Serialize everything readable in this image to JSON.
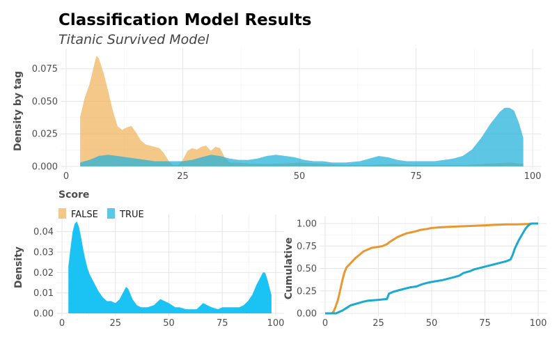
{
  "title": "Classification Model Results",
  "subtitle": "Titanic Survived Model",
  "chart_data": [
    {
      "type": "area",
      "panel": "density-by-tag",
      "xlabel": "Score",
      "ylabel": "Density by tag",
      "xlim": [
        0,
        100
      ],
      "ylim": [
        0,
        0.085
      ],
      "x_ticks": [
        "0",
        "25",
        "50",
        "75",
        "100"
      ],
      "y_ticks": [
        "0.000",
        "0.025",
        "0.050",
        "0.075"
      ],
      "legend": {
        "position": "bottom-left",
        "entries": [
          "FALSE",
          "TRUE"
        ]
      },
      "series": [
        {
          "name": "FALSE",
          "color": "#F0B35B",
          "x": [
            3,
            4,
            5,
            6,
            6.5,
            7,
            8,
            9,
            10,
            11,
            12,
            13,
            14,
            15,
            16,
            17,
            18,
            19,
            20,
            21,
            22,
            23,
            24,
            25,
            26,
            27,
            28,
            29,
            30,
            31,
            32,
            33,
            34,
            35,
            37,
            40,
            45,
            50,
            55,
            60,
            65,
            70,
            75,
            80,
            85,
            90,
            95,
            98
          ],
          "y": [
            0.038,
            0.053,
            0.063,
            0.078,
            0.085,
            0.083,
            0.072,
            0.058,
            0.043,
            0.031,
            0.028,
            0.03,
            0.031,
            0.026,
            0.02,
            0.017,
            0.016,
            0.015,
            0.014,
            0.01,
            0.004,
            0.001,
            0.001,
            0.005,
            0.012,
            0.014,
            0.013,
            0.015,
            0.016,
            0.012,
            0.015,
            0.014,
            0.007,
            0.003,
            0.003,
            0.002,
            0.002,
            0.003,
            0.002,
            0.001,
            0.001,
            0.002,
            0.001,
            0.001,
            0.001,
            0.002,
            0.003,
            0.002
          ]
        },
        {
          "name": "TRUE",
          "color": "#1FB0D9",
          "x": [
            3,
            5,
            7,
            9,
            11,
            13,
            15,
            17,
            19,
            21,
            23,
            25,
            27,
            29,
            31,
            33,
            35,
            37,
            39,
            41,
            43,
            45,
            47,
            49,
            51,
            53,
            55,
            57,
            60,
            63,
            65,
            67,
            69,
            71,
            73,
            75,
            77,
            79,
            81,
            83,
            85,
            87,
            89,
            91,
            93,
            94,
            95,
            96,
            97,
            98
          ],
          "y": [
            0.003,
            0.005,
            0.008,
            0.009,
            0.008,
            0.007,
            0.006,
            0.005,
            0.004,
            0.004,
            0.004,
            0.004,
            0.005,
            0.007,
            0.009,
            0.008,
            0.006,
            0.005,
            0.005,
            0.006,
            0.008,
            0.009,
            0.008,
            0.007,
            0.005,
            0.004,
            0.004,
            0.003,
            0.003,
            0.004,
            0.006,
            0.008,
            0.007,
            0.005,
            0.004,
            0.004,
            0.004,
            0.004,
            0.005,
            0.006,
            0.008,
            0.013,
            0.022,
            0.033,
            0.042,
            0.045,
            0.045,
            0.043,
            0.034,
            0.022
          ]
        }
      ]
    },
    {
      "type": "area",
      "panel": "overall-density",
      "xlabel": "",
      "ylabel": "Density",
      "xlim": [
        0,
        100
      ],
      "ylim": [
        0,
        0.045
      ],
      "x_ticks": [
        "0",
        "25",
        "50",
        "75",
        "100"
      ],
      "y_ticks": [
        "0.00",
        "0.01",
        "0.02",
        "0.03",
        "0.04"
      ],
      "series": [
        {
          "color": "#1BC3F5",
          "x": [
            3,
            4,
            5,
            6,
            7,
            8,
            9,
            10,
            11,
            12,
            13,
            14,
            15,
            17,
            19,
            21,
            23,
            25,
            27,
            29,
            30,
            31,
            33,
            35,
            37,
            40,
            43,
            45,
            46,
            48,
            50,
            53,
            55,
            58,
            60,
            63,
            65,
            66,
            68,
            70,
            73,
            75,
            78,
            80,
            83,
            85,
            87,
            89,
            91,
            93,
            94,
            95,
            96,
            97,
            98
          ],
          "y": [
            0.023,
            0.032,
            0.04,
            0.044,
            0.045,
            0.042,
            0.037,
            0.031,
            0.026,
            0.022,
            0.019,
            0.017,
            0.015,
            0.011,
            0.008,
            0.006,
            0.006,
            0.005,
            0.007,
            0.011,
            0.013,
            0.012,
            0.007,
            0.004,
            0.003,
            0.003,
            0.004,
            0.006,
            0.007,
            0.006,
            0.005,
            0.003,
            0.003,
            0.002,
            0.002,
            0.002,
            0.004,
            0.005,
            0.004,
            0.003,
            0.002,
            0.003,
            0.003,
            0.003,
            0.003,
            0.004,
            0.006,
            0.009,
            0.014,
            0.018,
            0.02,
            0.02,
            0.017,
            0.013,
            0.009
          ]
        }
      ]
    },
    {
      "type": "line",
      "panel": "cumulative",
      "xlabel": "",
      "ylabel": "Cumulative",
      "xlim": [
        0,
        100
      ],
      "ylim": [
        0,
        1
      ],
      "x_ticks": [
        "0",
        "25",
        "50",
        "75",
        "100"
      ],
      "y_ticks": [
        "0.00",
        "0.25",
        "0.50",
        "0.75",
        "1.00"
      ],
      "series": [
        {
          "name": "FALSE",
          "color": "#E8982E",
          "x": [
            0,
            3,
            4,
            5,
            6,
            7,
            8,
            9,
            10,
            12,
            14,
            16,
            18,
            20,
            22,
            25,
            27,
            29,
            30,
            32,
            34,
            36,
            38,
            40,
            42,
            45,
            48,
            50,
            55,
            60,
            65,
            70,
            75,
            80,
            85,
            90,
            95,
            97,
            100
          ],
          "y": [
            0,
            0,
            0.02,
            0.08,
            0.15,
            0.25,
            0.36,
            0.45,
            0.51,
            0.56,
            0.61,
            0.65,
            0.69,
            0.71,
            0.73,
            0.74,
            0.75,
            0.77,
            0.79,
            0.82,
            0.85,
            0.87,
            0.89,
            0.9,
            0.91,
            0.93,
            0.94,
            0.95,
            0.96,
            0.965,
            0.97,
            0.975,
            0.98,
            0.985,
            0.99,
            0.99,
            0.995,
            1.0,
            1.0
          ]
        },
        {
          "name": "TRUE",
          "color": "#1AA9D1",
          "x": [
            0,
            5,
            6,
            8,
            10,
            12,
            15,
            18,
            20,
            25,
            29,
            30,
            32,
            35,
            40,
            43,
            45,
            48,
            50,
            55,
            60,
            63,
            65,
            68,
            70,
            75,
            80,
            85,
            87,
            88,
            89,
            90,
            91,
            92,
            93,
            94,
            95,
            96,
            97,
            98,
            100
          ],
          "y": [
            0,
            0,
            0.01,
            0.03,
            0.06,
            0.09,
            0.11,
            0.13,
            0.14,
            0.15,
            0.16,
            0.22,
            0.24,
            0.26,
            0.29,
            0.3,
            0.32,
            0.34,
            0.35,
            0.37,
            0.4,
            0.42,
            0.45,
            0.47,
            0.49,
            0.52,
            0.55,
            0.58,
            0.6,
            0.65,
            0.72,
            0.77,
            0.82,
            0.86,
            0.9,
            0.94,
            0.97,
            0.99,
            1.0,
            1.0,
            1.0
          ]
        }
      ]
    }
  ]
}
